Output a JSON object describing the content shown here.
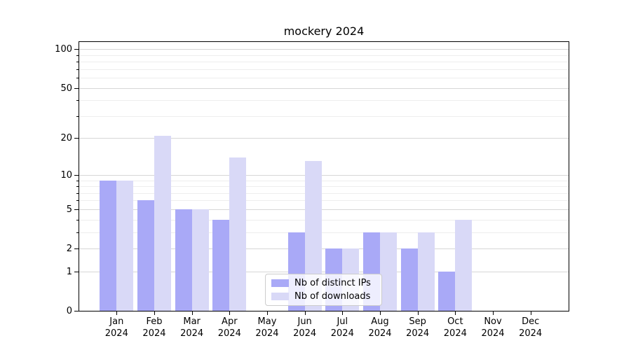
{
  "title": "mockery 2024",
  "chart_data": {
    "type": "bar",
    "title": "mockery 2024",
    "categories": [
      "Jan",
      "Feb",
      "Mar",
      "Apr",
      "May",
      "Jun",
      "Jul",
      "Aug",
      "Sep",
      "Oct",
      "Nov",
      "Dec"
    ],
    "category_year": "2024",
    "series": [
      {
        "name": "Nb of distinct IPs",
        "color": "#a9a9f7",
        "values": [
          9,
          6,
          5,
          4,
          0,
          3,
          2,
          3,
          2,
          1,
          0,
          0
        ]
      },
      {
        "name": "Nb of downloads",
        "color": "#d9d9f7",
        "values": [
          9,
          21,
          5,
          14,
          0,
          13,
          2,
          3,
          3,
          4,
          0,
          0
        ]
      }
    ],
    "xlabel": "",
    "ylabel": "",
    "yscale": "log1p",
    "ylim": [
      0,
      115
    ],
    "yticks": [
      0,
      1,
      2,
      5,
      10,
      20,
      50,
      100
    ],
    "yticks_minor": [
      3,
      4,
      6,
      7,
      8,
      9,
      30,
      40,
      60,
      70,
      80,
      90
    ],
    "grid": true,
    "legend_position": "lower center",
    "colors": {
      "grid_major": "#d6d6d6",
      "grid_minor": "#ededed",
      "text": "#000000"
    }
  }
}
